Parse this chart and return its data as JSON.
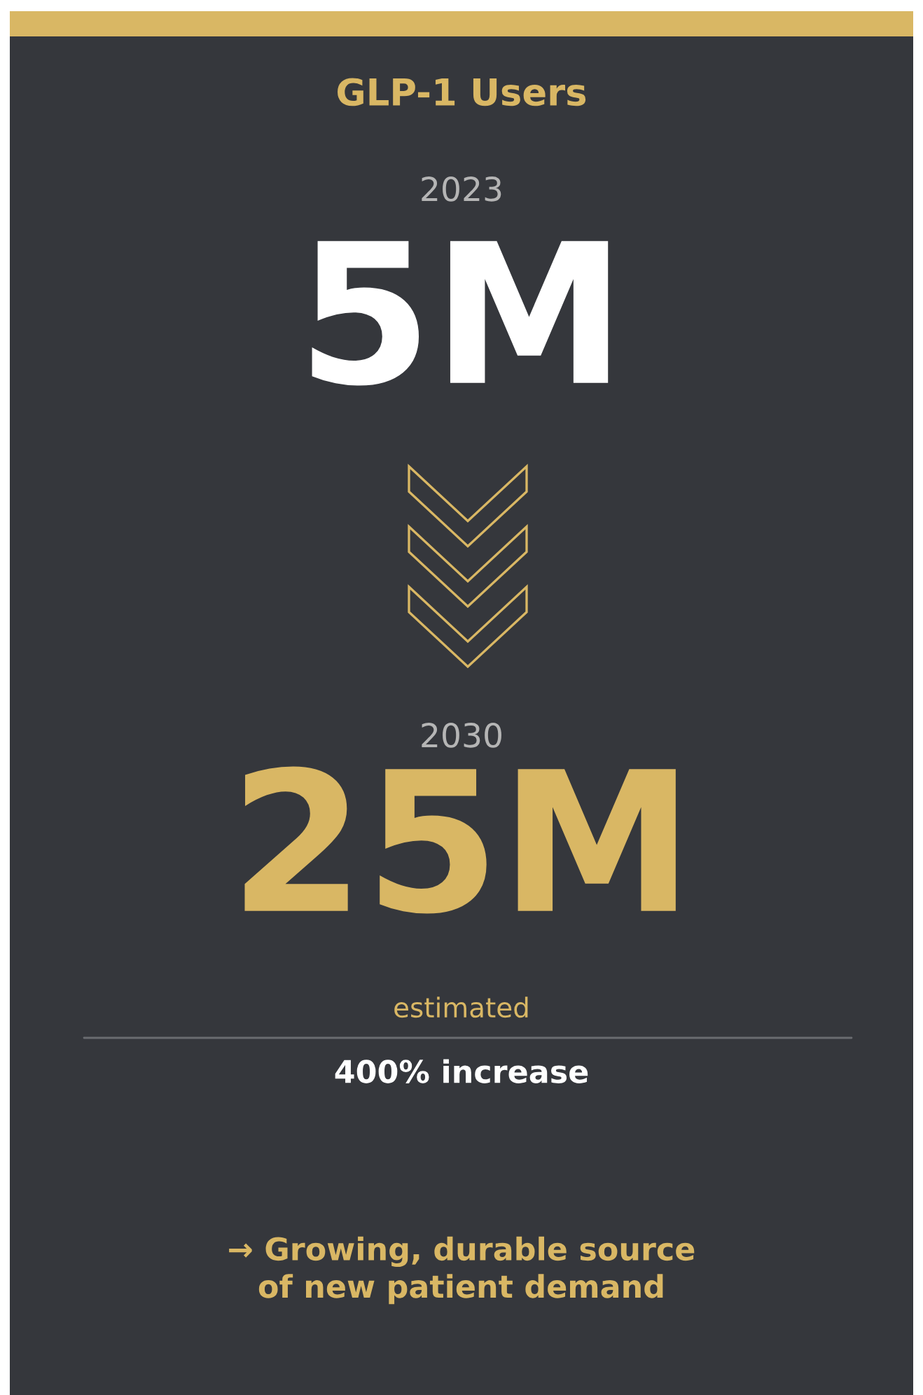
{
  "chart_data": {
    "type": "other",
    "title": "GLP-1 Users",
    "categories": [
      "2023",
      "2030"
    ],
    "values": [
      5,
      25
    ],
    "value_labels": [
      "5M",
      "25M"
    ],
    "colors": [
      "#ffffff",
      "#d9b764"
    ],
    "annotations": [
      "estimated",
      "400% increase",
      "→ Growing, durable source\nof new patient demand"
    ]
  }
}
